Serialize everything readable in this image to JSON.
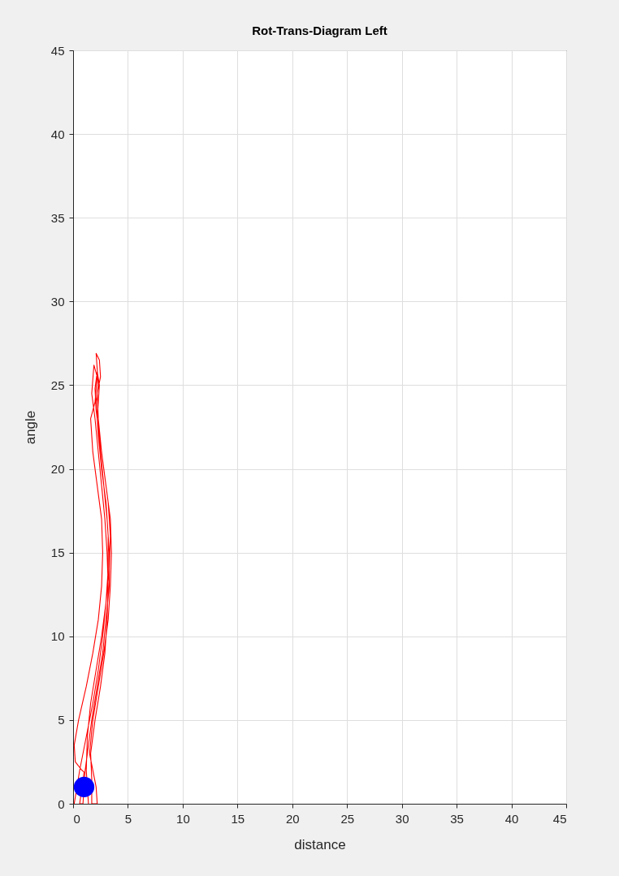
{
  "chart_data": {
    "type": "line",
    "title": "Rot-Trans-Diagram Left",
    "xlabel": "distance",
    "ylabel": "angle",
    "xlim": [
      0,
      45
    ],
    "ylim": [
      0,
      45
    ],
    "xticks": [
      0,
      5,
      10,
      15,
      20,
      25,
      30,
      35,
      40,
      45
    ],
    "yticks": [
      0,
      5,
      10,
      15,
      20,
      25,
      30,
      35,
      40,
      45
    ],
    "grid": true,
    "series": [
      {
        "color": "#ff0000",
        "line_style": "solid",
        "x": [
          0.1,
          0.6,
          1.2,
          1.8,
          2.3,
          2.7,
          3.0,
          3.2,
          3.2,
          3.0,
          2.6,
          2.3,
          2.1,
          2.3,
          2.1,
          2.4,
          2.5,
          2.2,
          2.3,
          2.6,
          3.0,
          3.4,
          3.5,
          3.4,
          3.2,
          2.8,
          2.3,
          1.8,
          1.5,
          2.1,
          2.2,
          1.7,
          1.7,
          1.6,
          2.0,
          2.5,
          2.9,
          3.1,
          3.2,
          3.1,
          2.9,
          2.6,
          2.3,
          2.0,
          1.7,
          1.9,
          2.2,
          2.0,
          1.6,
          1.8,
          2.2,
          2.6,
          2.7,
          2.6,
          2.3,
          1.8,
          1.2,
          0.5,
          0.1,
          0.2,
          0.8,
          1.0,
          0.6,
          0.9,
          1.1,
          1.3,
          1.7,
          2.2,
          2.7,
          3.0,
          3.3,
          3.3,
          3.1,
          2.8,
          2.5,
          2.2,
          2.4,
          2.2,
          2.0,
          2.1,
          2.4,
          2.8,
          3.2,
          3.4,
          3.3,
          3.0,
          2.6,
          2.1,
          1.6,
          1.3,
          1.2,
          1.4
        ],
        "values": [
          0,
          2,
          4,
          6,
          8,
          10,
          12,
          14,
          16,
          18,
          20,
          22,
          24,
          25,
          26.9,
          26.5,
          25.5,
          24.5,
          23,
          21,
          19,
          17,
          15,
          13,
          11,
          9,
          7,
          5,
          3,
          1,
          0,
          0,
          1.5,
          3,
          5,
          7,
          9,
          11,
          13,
          15,
          17,
          19,
          21,
          23,
          24.5,
          26.2,
          25.5,
          24,
          23,
          21,
          19,
          17,
          15,
          13,
          11,
          9,
          7,
          5,
          3.5,
          2.5,
          2,
          1.9,
          0,
          0,
          2,
          3,
          5,
          7,
          9,
          11,
          13,
          15,
          17,
          19,
          21,
          23,
          25,
          25.8,
          24.8,
          23.5,
          22,
          20,
          18,
          16,
          14,
          12,
          10,
          8,
          6,
          4,
          2,
          0
        ]
      },
      {
        "type": "scatter",
        "color": "#0000ff",
        "marker": "circle",
        "x": [
          1
        ],
        "values": [
          1
        ]
      }
    ]
  }
}
